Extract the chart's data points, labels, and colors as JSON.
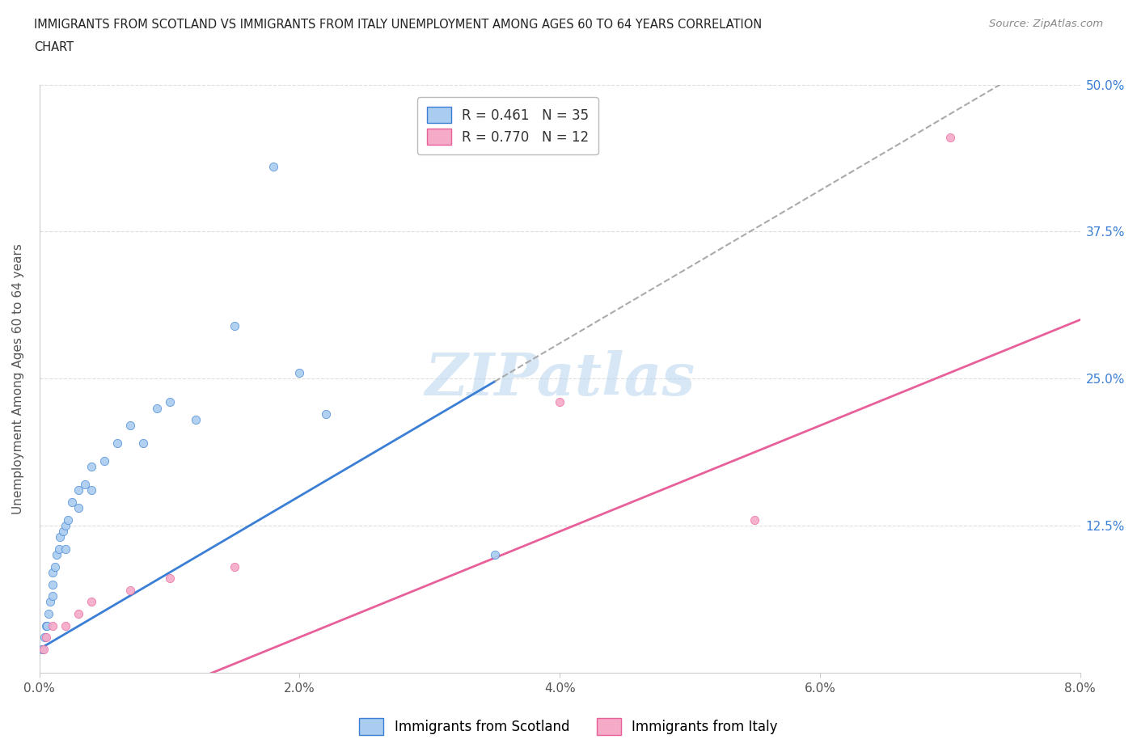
{
  "title_line1": "IMMIGRANTS FROM SCOTLAND VS IMMIGRANTS FROM ITALY UNEMPLOYMENT AMONG AGES 60 TO 64 YEARS CORRELATION",
  "title_line2": "CHART",
  "source": "Source: ZipAtlas.com",
  "ylabel": "Unemployment Among Ages 60 to 64 years",
  "xlim": [
    0.0,
    0.08
  ],
  "ylim": [
    0.0,
    0.5
  ],
  "xticks": [
    0.0,
    0.02,
    0.04,
    0.06,
    0.08
  ],
  "xticklabels": [
    "0.0%",
    "2.0%",
    "4.0%",
    "6.0%",
    "8.0%"
  ],
  "yticks": [
    0.0,
    0.125,
    0.25,
    0.375,
    0.5
  ],
  "yticklabels_right": [
    "",
    "12.5%",
    "25.0%",
    "37.5%",
    "50.0%"
  ],
  "scotland_color": "#aaccf0",
  "italy_color": "#f5aac8",
  "scotland_line_color": "#3a7fd5",
  "italy_line_color": "#e8609a",
  "dashed_line_color": "#aaaaaa",
  "scotland_R": 0.461,
  "scotland_N": 35,
  "italy_R": 0.77,
  "italy_N": 12,
  "watermark": "ZIPatlas",
  "legend_label_scotland": "Immigrants from Scotland",
  "legend_label_italy": "Immigrants from Italy",
  "scotland_slope": 6.5,
  "scotland_intercept": 0.02,
  "italy_slope": 4.5,
  "italy_intercept": -0.06,
  "scotland_x": [
    0.0002,
    0.0004,
    0.0005,
    0.0006,
    0.0007,
    0.0008,
    0.001,
    0.001,
    0.001,
    0.0012,
    0.0013,
    0.0015,
    0.0016,
    0.0018,
    0.002,
    0.002,
    0.0022,
    0.0025,
    0.003,
    0.003,
    0.0035,
    0.004,
    0.004,
    0.005,
    0.006,
    0.007,
    0.008,
    0.009,
    0.01,
    0.012,
    0.015,
    0.018,
    0.02,
    0.022,
    0.035
  ],
  "scotland_y": [
    0.02,
    0.03,
    0.04,
    0.04,
    0.05,
    0.06,
    0.065,
    0.075,
    0.085,
    0.09,
    0.1,
    0.105,
    0.115,
    0.12,
    0.105,
    0.125,
    0.13,
    0.145,
    0.14,
    0.155,
    0.16,
    0.155,
    0.175,
    0.18,
    0.195,
    0.21,
    0.195,
    0.225,
    0.23,
    0.215,
    0.295,
    0.43,
    0.255,
    0.22,
    0.1
  ],
  "italy_x": [
    0.0003,
    0.0005,
    0.001,
    0.002,
    0.003,
    0.004,
    0.007,
    0.01,
    0.015,
    0.04,
    0.055,
    0.07
  ],
  "italy_y": [
    0.02,
    0.03,
    0.04,
    0.04,
    0.05,
    0.06,
    0.07,
    0.08,
    0.09,
    0.23,
    0.13,
    0.455
  ]
}
